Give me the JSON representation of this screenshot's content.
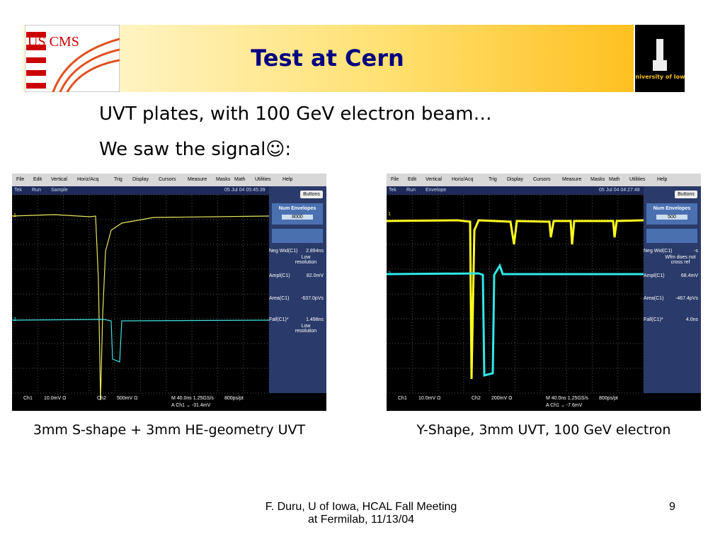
{
  "header": {
    "title": "Test at Cern",
    "logo_left": "US CMS",
    "logo_right": "University of Iowa"
  },
  "body": {
    "lines": [
      "UVT plates, with 100 GeV electron beam…",
      "We saw the signal☺:"
    ]
  },
  "scopes": [
    {
      "menu": [
        "File",
        "Edit",
        "Vertical",
        "Horiz/Acq",
        "Trig",
        "Display",
        "Cursors",
        "Measure",
        "Masks",
        "Math",
        "Utilities",
        "Help"
      ],
      "status": [
        "Tek",
        "Run",
        "Sample",
        "05 Jul 04 05:45:39"
      ],
      "button": "Buttons",
      "panel_title": "Num Envelopes",
      "panel_value": "8000",
      "measurements": [
        {
          "label": "Neg Wid(C1)",
          "value": "2.894ns",
          "note": "Low resolution"
        },
        {
          "label": "Ampl(C1)",
          "value": "82.0mV"
        },
        {
          "label": "Area(C1)",
          "value": "-637.0pVs"
        },
        {
          "label": "Fall(C1)*",
          "value": "1.498ns",
          "note": "Low resolution"
        }
      ],
      "markers": [
        "1",
        "2"
      ],
      "readout": [
        "Ch1",
        "10.0mV Ω",
        "Ch2",
        "500mV Ω",
        "M 40.0ns 1.25GS/s",
        "800ps/pt",
        "A Ch1 ⌄ -31.4mV"
      ],
      "caption": "3mm S-shape + 3mm HE-geometry UVT"
    },
    {
      "menu": [
        "File",
        "Edit",
        "Vertical",
        "Horiz/Acq",
        "Trig",
        "Display",
        "Cursors",
        "Measure",
        "Masks",
        "Math",
        "Utilities",
        "Help"
      ],
      "status": [
        "Tek",
        "Run",
        "Envelope",
        "05 Jul 04 04:27:48"
      ],
      "button": "Buttons",
      "panel_title": "Num Envelopes",
      "panel_value": "500",
      "measurements": [
        {
          "label": "Neg Wid(C1)",
          "value": "-s",
          "note": "Wfm does not cross ref"
        },
        {
          "label": "Ampl(C1)",
          "value": "68.4mV"
        },
        {
          "label": "Area(C1)",
          "value": "-467.4pVs"
        },
        {
          "label": "Fall(C1)*",
          "value": "4.0ns"
        }
      ],
      "markers": [
        "1",
        "2"
      ],
      "readout": [
        "Ch1",
        "10.0mV Ω",
        "Ch2",
        "200mV Ω",
        "M 40.0ns 1.25GS/s",
        "800ps/pt",
        "A Ch1 ⌄ -7.6mV"
      ],
      "caption": "Y-Shape, 3mm UVT, 100 GeV electron"
    }
  ],
  "footer": {
    "text": "F. Duru, U of Iowa, HCAL Fall Meeting at Fermilab, 11/13/04",
    "page": "9"
  }
}
